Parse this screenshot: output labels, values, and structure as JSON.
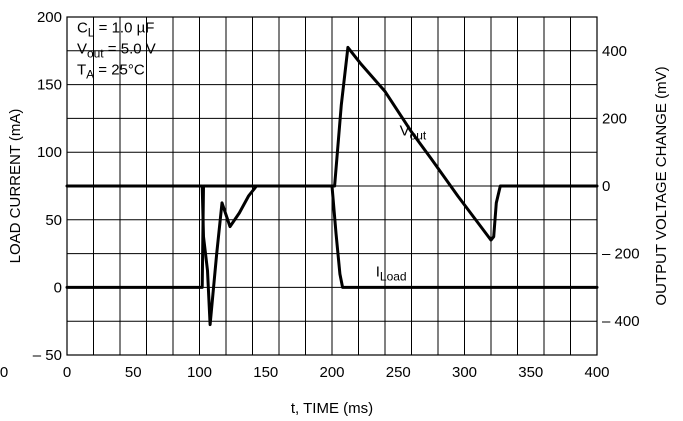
{
  "chart_data": {
    "type": "line",
    "xlabel": "t, TIME (ms)",
    "ylabel_left": "LOAD CURRENT (mA)",
    "ylabel_right": "OUTPUT VOLTAGE CHANGE (mV)",
    "xlim": [
      0,
      400
    ],
    "ylim_left": [
      -50,
      200
    ],
    "ylim_right": [
      -500,
      500
    ],
    "x_ticks": [
      "0",
      "50",
      "100",
      "150",
      "200",
      "250",
      "300",
      "350",
      "400"
    ],
    "x_ticks_extra": [
      "0"
    ],
    "y_left_ticks": [
      "200",
      "150",
      "100",
      "50",
      "0",
      "– 50"
    ],
    "y_right_ticks": [
      "400",
      "200",
      "0",
      "– 200",
      "– 400"
    ],
    "grid": true,
    "conditions": [
      {
        "main": "C",
        "sub": "L",
        "rest": " = 1.0 µF"
      },
      {
        "main": "V",
        "sub": "out",
        "rest": " = 5.0 V"
      },
      {
        "main": "T",
        "sub": "A",
        "rest": " = 25°C"
      }
    ],
    "series": [
      {
        "name": "V",
        "name_sub": "out",
        "axis": "right",
        "x": [
          0,
          102,
          103,
          106,
          108,
          113,
          117,
          123,
          130,
          137,
          143,
          200,
          202,
          207,
          212,
          222,
          240,
          260,
          275,
          295,
          320,
          322,
          324,
          327,
          400
        ],
        "y": [
          0,
          0,
          -150,
          -250,
          -410,
          -200,
          -50,
          -120,
          -80,
          -30,
          0,
          0,
          0,
          240,
          410,
          360,
          280,
          160,
          80,
          -30,
          -160,
          -150,
          -50,
          0,
          0
        ]
      },
      {
        "name": "I",
        "name_sub": "Load",
        "axis": "left",
        "x": [
          0,
          100,
          102,
          103,
          200,
          203,
          206,
          208,
          400
        ],
        "y": [
          0,
          0,
          0,
          75,
          75,
          40,
          10,
          0,
          0
        ]
      }
    ]
  }
}
